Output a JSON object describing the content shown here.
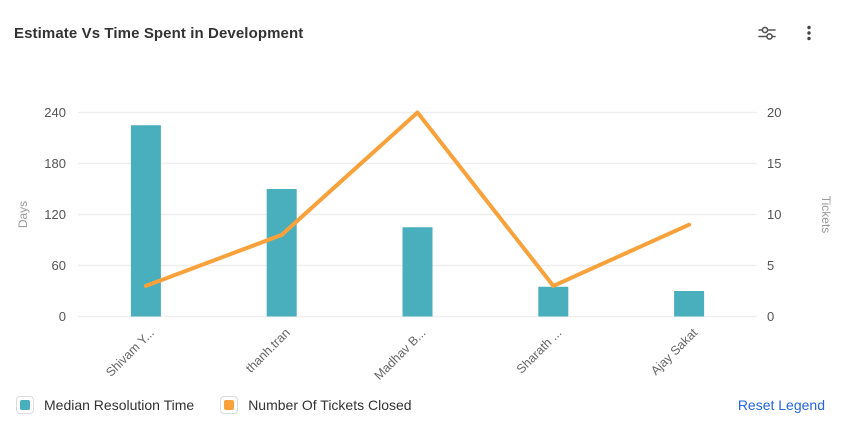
{
  "header": {
    "title": "Estimate Vs Time Spent in Development",
    "actions": [
      {
        "icon": "filter-sliders-icon"
      },
      {
        "icon": "kebab-menu-icon"
      }
    ]
  },
  "chart_data": {
    "type": "combo",
    "subtype": "bar+line",
    "categories": [
      "Shivam Y...",
      "thanh.tran",
      "Madhav B...",
      "Sharath ...",
      "Ajay Sakat"
    ],
    "series": [
      {
        "name": "Median Resolution Time",
        "type": "bar",
        "axis": "left",
        "color": "#4AAFBC",
        "values": [
          225,
          150,
          105,
          35,
          30
        ]
      },
      {
        "name": "Number Of Tickets Closed",
        "type": "line",
        "axis": "right",
        "color": "#F9A23C",
        "values": [
          3,
          8,
          20,
          3,
          9
        ]
      }
    ],
    "left_axis": {
      "label": "Days",
      "min": 0,
      "max": 240,
      "ticks": [
        0,
        60,
        120,
        180,
        240
      ]
    },
    "right_axis": {
      "label": "Tickets",
      "min": 0,
      "max": 20,
      "ticks": [
        0,
        5,
        10,
        15,
        20
      ]
    },
    "grid": true,
    "legend_position": "bottom",
    "x_label_rotation": -45
  },
  "legend": {
    "items": [
      {
        "label": "Median Resolution Time",
        "color": "#4AAFBC"
      },
      {
        "label": "Number Of Tickets Closed",
        "color": "#F9A23C"
      }
    ],
    "reset_label": "Reset Legend"
  },
  "colors": {
    "bar": "#4AAFBC",
    "line": "#F9A23C",
    "link": "#2266E3",
    "grid": "#EFEFEF",
    "tick_text": "#555555",
    "axis_title": "#9B9B9B",
    "title_text": "#333333",
    "icon": "#555555"
  }
}
